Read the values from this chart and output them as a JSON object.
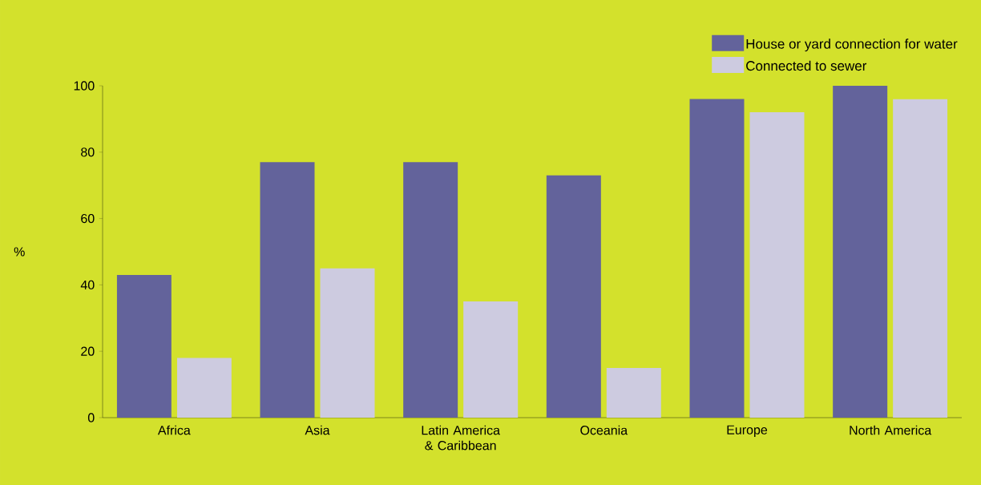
{
  "chart_data": {
    "type": "bar",
    "ylabel": "%",
    "categories": [
      "Africa",
      "Asia",
      "Latin America & Caribbean",
      "Oceania",
      "Europe",
      "North America"
    ],
    "series": [
      {
        "name": "House or yard connection for water",
        "color": "#63639b",
        "values": [
          43,
          77,
          77,
          73,
          96,
          100
        ]
      },
      {
        "name": "Connected to sewer",
        "color": "#cdcbe0",
        "values": [
          18,
          45,
          35,
          15,
          92,
          96
        ]
      }
    ],
    "ylim": [
      0,
      100
    ],
    "yticks": [
      0,
      20,
      40,
      60,
      80,
      100
    ],
    "grid": false,
    "legend": "top right"
  }
}
